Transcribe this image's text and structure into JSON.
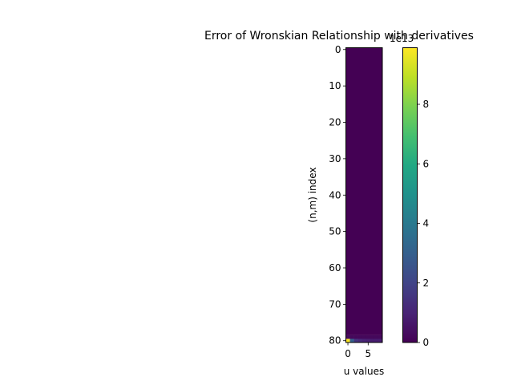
{
  "chart_data": {
    "type": "heatmap",
    "title": "Error of Wronskian Relationship with derivatives",
    "xlabel": "u values",
    "ylabel": "(n,m) index",
    "x_ticks": [
      0,
      5
    ],
    "y_ticks": [
      0,
      10,
      20,
      30,
      40,
      50,
      60,
      70,
      80
    ],
    "n_rows": 81,
    "n_cols": 9,
    "x_range": [
      -0.5,
      8.5
    ],
    "y_range": [
      80.5,
      -0.5
    ],
    "colormap": "viridis",
    "colorbar": {
      "ticks": [
        0,
        2,
        4,
        6,
        8
      ],
      "offset_label": "1e13",
      "range": [
        0,
        9.9
      ]
    },
    "values_row_80": [
      9.9,
      3.0,
      1.5,
      1.2,
      1.0,
      0.9,
      0.8,
      0.8,
      0.8
    ],
    "values_row_79": [
      0.3,
      0.2,
      0.2,
      0.2,
      0.2,
      0.2,
      0.2,
      0.2,
      0.2
    ],
    "other_rows_value": 0
  }
}
